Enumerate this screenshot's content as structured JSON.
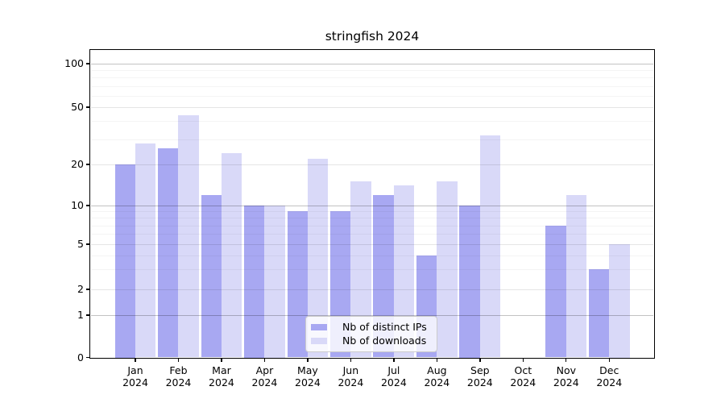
{
  "chart_data": {
    "type": "bar",
    "title": "stringfish 2024",
    "categories": [
      "Jan 2024",
      "Feb 2024",
      "Mar 2024",
      "Apr 2024",
      "May 2024",
      "Jun 2024",
      "Jul 2024",
      "Aug 2024",
      "Sep 2024",
      "Oct 2024",
      "Nov 2024",
      "Dec 2024"
    ],
    "series": [
      {
        "name": "Nb of distinct IPs",
        "color": "#a8a8f2",
        "values": [
          20,
          26,
          12,
          10,
          9,
          9,
          12,
          4,
          10,
          0,
          7,
          3
        ]
      },
      {
        "name": "Nb of downloads",
        "color": "#d9d9f8",
        "values": [
          28,
          44,
          24,
          10,
          22,
          15,
          14,
          15,
          32,
          0,
          12,
          5
        ]
      }
    ],
    "yticks": [
      0,
      1,
      2,
      5,
      10,
      20,
      50,
      100
    ],
    "yscale": "symlog",
    "ylim": [
      0,
      125
    ],
    "xlabel": "",
    "ylabel": "",
    "grid": true,
    "legend_position": "lower center"
  }
}
